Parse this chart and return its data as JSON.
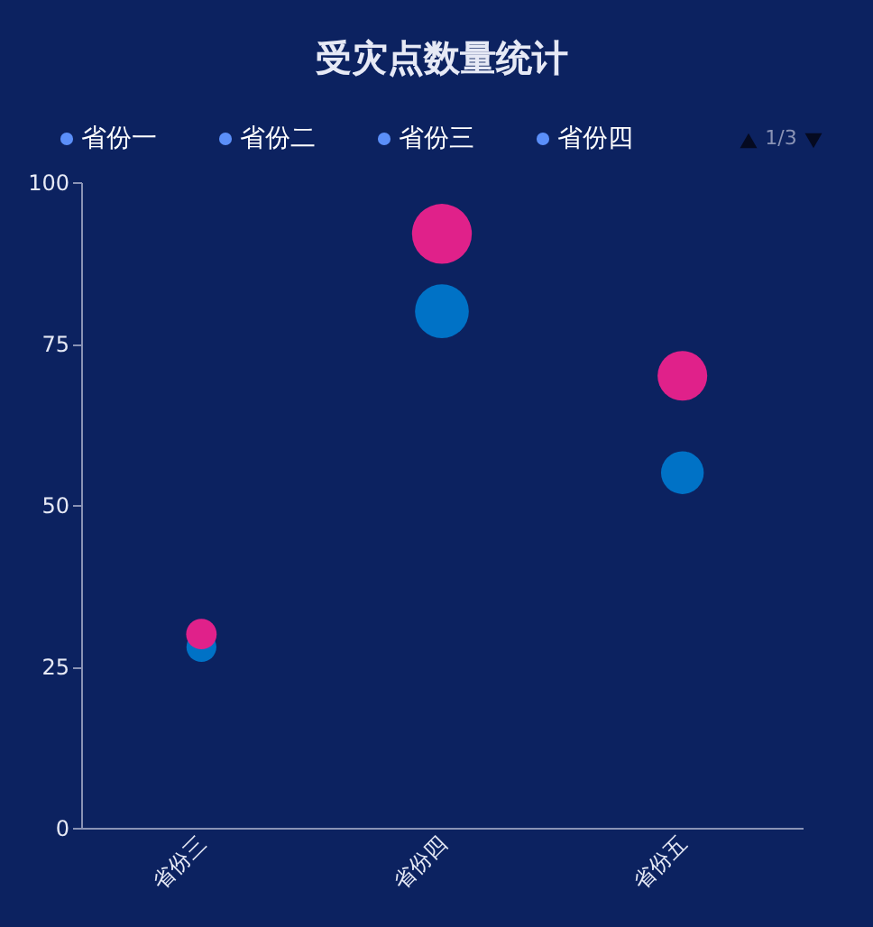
{
  "chart_data": {
    "type": "bubble",
    "title": "受灾点数量统计",
    "categories": [
      "省份三",
      "省份四",
      "省份五"
    ],
    "series": [
      {
        "color": "#0072c6",
        "values": [
          28,
          80,
          55
        ],
        "sizes": [
          0.25,
          0.81,
          0.51
        ]
      },
      {
        "color": "#e0218a",
        "values": [
          30,
          92,
          70
        ],
        "sizes": [
          0.26,
          1,
          0.69
        ]
      }
    ],
    "ylim": [
      0,
      100
    ],
    "yticks": [
      0,
      25,
      50,
      75,
      100
    ],
    "grid": false,
    "annotations": [
      "省份一",
      "省份二",
      "省份三",
      "省份四",
      "1/3"
    ]
  }
}
